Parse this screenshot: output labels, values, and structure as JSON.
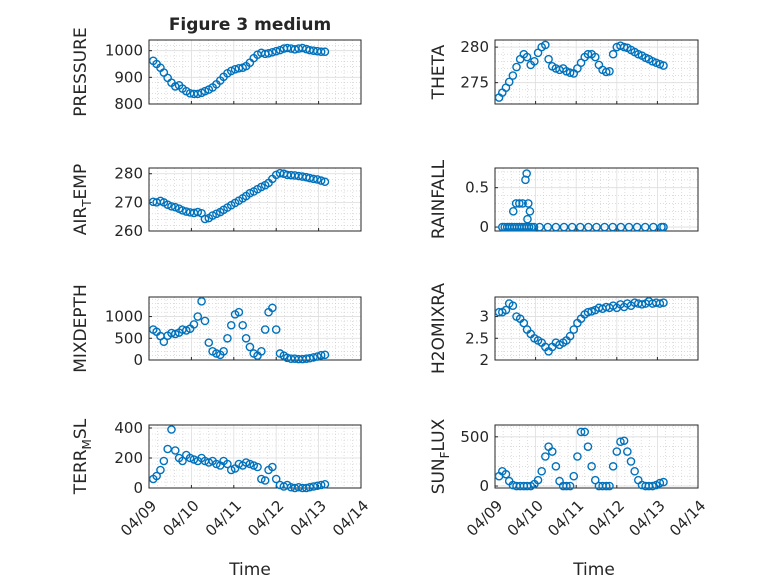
{
  "figure": {
    "title": "Figure 3 medium",
    "x_ticks": [
      "04/09",
      "04/10",
      "04/11",
      "04/12",
      "04/13",
      "04/14"
    ],
    "xlabel": "Time"
  },
  "colors": {
    "marker": "#0072BD",
    "grid": "#c8c8c8",
    "axis": "#262626"
  },
  "chart_data": [
    {
      "type": "scatter",
      "ylabel": "PRESSURE",
      "ylabel_sub": null,
      "xlim": [
        0,
        5
      ],
      "ylim": [
        800,
        1040
      ],
      "yticks": [
        800,
        900,
        1000
      ],
      "ytick_labels": [
        "800",
        "900",
        "1000"
      ],
      "x": [
        0.1,
        0.18,
        0.27,
        0.35,
        0.44,
        0.53,
        0.62,
        0.71,
        0.79,
        0.88,
        0.97,
        1.06,
        1.15,
        1.24,
        1.32,
        1.41,
        1.5,
        1.59,
        1.68,
        1.76,
        1.85,
        1.94,
        2.03,
        2.12,
        2.21,
        2.29,
        2.38,
        2.47,
        2.56,
        2.65,
        2.74,
        2.82,
        2.91,
        3.0,
        3.09,
        3.18,
        3.26,
        3.35,
        3.44,
        3.53,
        3.62,
        3.71,
        3.79,
        3.88,
        3.97,
        4.06,
        4.15
      ],
      "y": [
        962,
        950,
        936,
        918,
        898,
        880,
        866,
        870,
        858,
        848,
        840,
        838,
        838,
        842,
        848,
        854,
        862,
        874,
        888,
        902,
        915,
        924,
        930,
        934,
        936,
        942,
        955,
        972,
        985,
        992,
        988,
        990,
        994,
        998,
        1002,
        1008,
        1010,
        1008,
        1005,
        1008,
        1010,
        1006,
        1002,
        1000,
        998,
        996,
        996
      ]
    },
    {
      "type": "scatter",
      "ylabel": "THETA",
      "ylabel_sub": null,
      "xlim": [
        0,
        5
      ],
      "ylim": [
        272,
        281
      ],
      "yticks": [
        275,
        280
      ],
      "ytick_labels": [
        "275",
        "280"
      ],
      "x": [
        0.1,
        0.18,
        0.27,
        0.35,
        0.44,
        0.53,
        0.62,
        0.71,
        0.79,
        0.88,
        0.97,
        1.06,
        1.15,
        1.24,
        1.32,
        1.41,
        1.5,
        1.59,
        1.68,
        1.76,
        1.85,
        1.94,
        2.03,
        2.12,
        2.21,
        2.29,
        2.38,
        2.47,
        2.56,
        2.65,
        2.74,
        2.82,
        2.91,
        3.0,
        3.09,
        3.18,
        3.26,
        3.35,
        3.44,
        3.53,
        3.62,
        3.71,
        3.79,
        3.88,
        3.97,
        4.06,
        4.15
      ],
      "y": [
        272.9,
        273.6,
        274.3,
        275.1,
        276.0,
        277.2,
        278.3,
        279.0,
        278.6,
        277.5,
        278.0,
        279.2,
        280.0,
        280.3,
        278.3,
        277.3,
        277.0,
        276.8,
        277.0,
        276.6,
        276.4,
        276.3,
        277.0,
        277.8,
        278.6,
        279.0,
        279.0,
        278.6,
        277.5,
        276.8,
        276.5,
        276.6,
        279.0,
        280.0,
        280.2,
        280.0,
        279.9,
        279.6,
        279.3,
        279.0,
        278.8,
        278.5,
        278.3,
        278.0,
        277.8,
        277.6,
        277.4
      ]
    },
    {
      "type": "scatter",
      "ylabel": "AIR",
      "ylabel_sub": "T",
      "ylabel_after": "EMP",
      "xlim": [
        0,
        5
      ],
      "ylim": [
        260,
        282
      ],
      "yticks": [
        260,
        270,
        280
      ],
      "ytick_labels": [
        "260",
        "270",
        "280"
      ],
      "x": [
        0.1,
        0.18,
        0.27,
        0.35,
        0.44,
        0.53,
        0.62,
        0.71,
        0.79,
        0.88,
        0.97,
        1.06,
        1.15,
        1.24,
        1.32,
        1.41,
        1.5,
        1.59,
        1.68,
        1.76,
        1.85,
        1.94,
        2.03,
        2.12,
        2.21,
        2.29,
        2.38,
        2.47,
        2.56,
        2.65,
        2.74,
        2.82,
        2.91,
        3.0,
        3.09,
        3.18,
        3.26,
        3.35,
        3.44,
        3.53,
        3.62,
        3.71,
        3.79,
        3.88,
        3.97,
        4.06,
        4.15
      ],
      "y": [
        270.2,
        270.0,
        270.5,
        270.0,
        269.2,
        268.6,
        268.3,
        267.8,
        267.2,
        266.8,
        266.5,
        266.3,
        266.6,
        266.2,
        264.2,
        264.5,
        265.4,
        266.0,
        266.6,
        267.4,
        268.2,
        269.0,
        269.8,
        270.6,
        271.4,
        272.2,
        273.2,
        273.8,
        274.6,
        275.4,
        276.0,
        276.8,
        278.2,
        279.6,
        280.2,
        280.0,
        279.6,
        279.5,
        279.4,
        279.2,
        279.0,
        278.8,
        278.5,
        278.2,
        278.0,
        277.6,
        277.2
      ]
    },
    {
      "type": "scatter",
      "ylabel": "RAINFALL",
      "ylabel_sub": null,
      "xlim": [
        0,
        5
      ],
      "ylim": [
        -0.05,
        0.75
      ],
      "yticks": [
        0,
        0.5
      ],
      "ytick_labels": [
        "0",
        "0.5"
      ],
      "x": [
        0.18,
        0.24,
        0.3,
        0.36,
        0.42,
        0.48,
        0.54,
        0.6,
        0.66,
        0.72,
        0.78,
        0.84,
        0.9,
        0.96,
        1.1,
        1.3,
        1.5,
        1.7,
        1.9,
        2.1,
        2.3,
        2.5,
        2.7,
        2.9,
        3.1,
        3.3,
        3.5,
        3.7,
        3.9,
        4.1,
        4.15,
        0.45,
        0.52,
        0.6,
        0.68,
        0.75,
        0.78,
        0.82,
        0.86,
        0.8
      ],
      "y": [
        0,
        0,
        0,
        0,
        0,
        0,
        0,
        0,
        0,
        0,
        0,
        0,
        0,
        0,
        0,
        0,
        0,
        0,
        0,
        0,
        0,
        0,
        0,
        0,
        0,
        0,
        0,
        0,
        0,
        0,
        0,
        0.2,
        0.3,
        0.3,
        0.3,
        0.6,
        0.68,
        0.3,
        0.2,
        0.1
      ]
    },
    {
      "type": "scatter",
      "ylabel": "MIXDEPTH",
      "ylabel_sub": null,
      "xlim": [
        0,
        5
      ],
      "ylim": [
        0,
        1450
      ],
      "yticks": [
        0,
        500,
        1000
      ],
      "ytick_labels": [
        "0",
        "500",
        "1000"
      ],
      "x": [
        0.1,
        0.18,
        0.27,
        0.35,
        0.44,
        0.53,
        0.62,
        0.71,
        0.79,
        0.88,
        0.97,
        1.06,
        1.15,
        1.24,
        1.32,
        1.41,
        1.5,
        1.59,
        1.68,
        1.76,
        1.85,
        1.94,
        2.03,
        2.12,
        2.21,
        2.29,
        2.38,
        2.47,
        2.56,
        2.65,
        2.74,
        2.82,
        2.91,
        3.0,
        3.09,
        3.18,
        3.26,
        3.35,
        3.44,
        3.53,
        3.62,
        3.71,
        3.79,
        3.88,
        3.97,
        4.06,
        4.15
      ],
      "y": [
        700,
        650,
        550,
        420,
        560,
        620,
        600,
        630,
        700,
        680,
        720,
        820,
        1000,
        1350,
        900,
        400,
        200,
        150,
        120,
        200,
        500,
        800,
        1050,
        1100,
        800,
        500,
        300,
        150,
        100,
        200,
        700,
        1100,
        1200,
        700,
        150,
        100,
        50,
        30,
        30,
        20,
        20,
        30,
        40,
        60,
        80,
        110,
        120
      ]
    },
    {
      "type": "scatter",
      "ylabel": "H2OMIXRA",
      "ylabel_sub": null,
      "xlim": [
        0,
        5
      ],
      "ylim": [
        2.0,
        3.45
      ],
      "yticks": [
        2,
        2.5,
        3
      ],
      "ytick_labels": [
        "2",
        "2.5",
        "3"
      ],
      "x": [
        0.1,
        0.18,
        0.27,
        0.35,
        0.44,
        0.53,
        0.62,
        0.71,
        0.79,
        0.88,
        0.97,
        1.06,
        1.15,
        1.24,
        1.32,
        1.41,
        1.5,
        1.59,
        1.68,
        1.76,
        1.85,
        1.94,
        2.03,
        2.12,
        2.21,
        2.29,
        2.38,
        2.47,
        2.56,
        2.65,
        2.74,
        2.82,
        2.91,
        3.0,
        3.09,
        3.18,
        3.26,
        3.35,
        3.44,
        3.53,
        3.62,
        3.71,
        3.79,
        3.88,
        3.97,
        4.06,
        4.15
      ],
      "y": [
        3.1,
        3.1,
        3.15,
        3.3,
        3.25,
        3.0,
        2.95,
        2.85,
        2.7,
        2.6,
        2.5,
        2.45,
        2.4,
        2.3,
        2.2,
        2.3,
        2.4,
        2.35,
        2.4,
        2.45,
        2.55,
        2.7,
        2.85,
        2.95,
        3.05,
        3.1,
        3.12,
        3.15,
        3.2,
        3.18,
        3.22,
        3.2,
        3.25,
        3.2,
        3.28,
        3.22,
        3.3,
        3.25,
        3.32,
        3.3,
        3.28,
        3.3,
        3.35,
        3.3,
        3.32,
        3.3,
        3.32
      ]
    },
    {
      "type": "scatter",
      "ylabel": "TERR",
      "ylabel_sub": "M",
      "ylabel_after": "SL",
      "xlim": [
        0,
        5
      ],
      "ylim": [
        0,
        420
      ],
      "yticks": [
        0,
        200,
        400
      ],
      "ytick_labels": [
        "0",
        "200",
        "400"
      ],
      "x": [
        0.1,
        0.18,
        0.27,
        0.35,
        0.44,
        0.53,
        0.62,
        0.71,
        0.79,
        0.88,
        0.97,
        1.06,
        1.15,
        1.24,
        1.32,
        1.41,
        1.5,
        1.59,
        1.68,
        1.76,
        1.85,
        1.94,
        2.03,
        2.12,
        2.21,
        2.29,
        2.38,
        2.47,
        2.56,
        2.65,
        2.74,
        2.82,
        2.91,
        3.0,
        3.09,
        3.18,
        3.26,
        3.35,
        3.44,
        3.53,
        3.62,
        3.71,
        3.79,
        3.88,
        3.97,
        4.06,
        4.15
      ],
      "y": [
        60,
        80,
        120,
        180,
        260,
        390,
        250,
        200,
        180,
        220,
        200,
        190,
        180,
        200,
        180,
        170,
        180,
        160,
        150,
        180,
        160,
        120,
        130,
        160,
        150,
        170,
        160,
        150,
        140,
        60,
        50,
        120,
        140,
        60,
        20,
        10,
        20,
        5,
        0,
        5,
        0,
        0,
        5,
        10,
        15,
        20,
        25
      ]
    },
    {
      "type": "scatter",
      "ylabel": "SUN",
      "ylabel_sub": "F",
      "ylabel_after": "LUX",
      "xlim": [
        0,
        5
      ],
      "ylim": [
        -20,
        620
      ],
      "yticks": [
        0,
        500
      ],
      "ytick_labels": [
        "0",
        "500"
      ],
      "x": [
        0.1,
        0.18,
        0.27,
        0.35,
        0.44,
        0.53,
        0.62,
        0.71,
        0.79,
        0.88,
        0.97,
        1.06,
        1.15,
        1.24,
        1.32,
        1.41,
        1.5,
        1.59,
        1.68,
        1.76,
        1.85,
        1.94,
        2.03,
        2.12,
        2.21,
        2.29,
        2.38,
        2.47,
        2.56,
        2.65,
        2.74,
        2.82,
        2.91,
        3.0,
        3.09,
        3.18,
        3.26,
        3.35,
        3.44,
        3.53,
        3.62,
        3.71,
        3.79,
        3.88,
        3.97,
        4.06,
        4.15
      ],
      "y": [
        100,
        150,
        120,
        50,
        10,
        0,
        0,
        0,
        0,
        0,
        20,
        60,
        150,
        300,
        400,
        350,
        200,
        50,
        0,
        0,
        0,
        100,
        300,
        550,
        550,
        400,
        200,
        60,
        0,
        0,
        0,
        0,
        200,
        350,
        450,
        460,
        350,
        250,
        150,
        60,
        10,
        0,
        0,
        0,
        10,
        30,
        40
      ]
    }
  ]
}
